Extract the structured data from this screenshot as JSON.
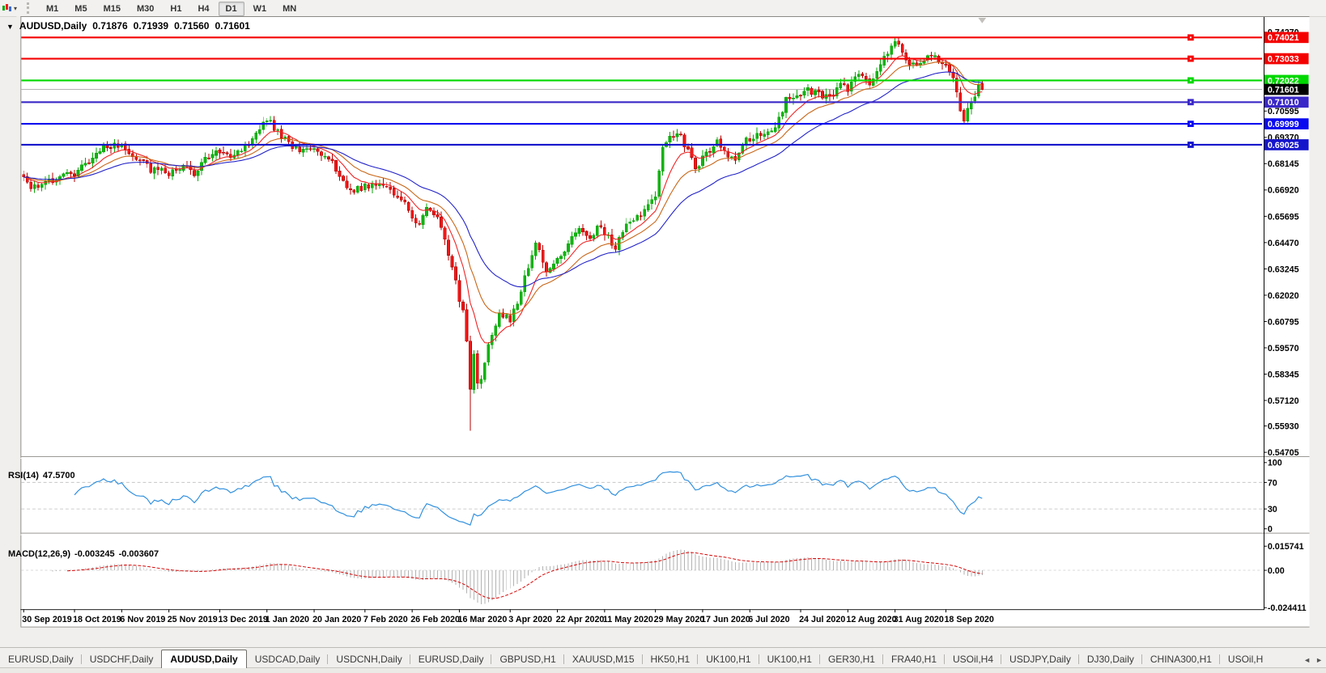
{
  "toolbar": {
    "timeframes": [
      {
        "label": "M1",
        "active": false
      },
      {
        "label": "M5",
        "active": false
      },
      {
        "label": "M15",
        "active": false
      },
      {
        "label": "M30",
        "active": false
      },
      {
        "label": "H1",
        "active": false
      },
      {
        "label": "H4",
        "active": false
      },
      {
        "label": "D1",
        "active": true
      },
      {
        "label": "W1",
        "active": false
      },
      {
        "label": "MN",
        "active": false
      }
    ]
  },
  "chart_header": {
    "dropdown_glyph": "▼",
    "symbol_label": "AUDUSD,Daily",
    "open": "0.71876",
    "high": "0.71939",
    "low": "0.71560",
    "close": "0.71601"
  },
  "price_axis": {
    "current_price": "0.71601",
    "ticks": [
      "0.74270",
      "0.73045",
      "0.71820",
      "0.70595",
      "0.69370",
      "0.68145",
      "0.66920",
      "0.65695",
      "0.64470",
      "0.63245",
      "0.62020",
      "0.60795",
      "0.59570",
      "0.58345",
      "0.57120",
      "0.55930",
      "0.54705"
    ],
    "tick_values": [
      0.7427,
      0.73045,
      0.7182,
      0.70595,
      0.6937,
      0.68145,
      0.6692,
      0.65695,
      0.6447,
      0.63245,
      0.6202,
      0.60795,
      0.5957,
      0.58345,
      0.5712,
      0.5593,
      0.54705
    ]
  },
  "rsi_panel": {
    "name": "RSI(14)",
    "value": "47.5700",
    "ticks": [
      {
        "v": 100,
        "label": "100",
        "dashed": false
      },
      {
        "v": 70,
        "label": "70",
        "dashed": true
      },
      {
        "v": 30,
        "label": "30",
        "dashed": true
      },
      {
        "v": 0,
        "label": "0",
        "dashed": false
      }
    ],
    "line_color": "#2f8fde"
  },
  "macd_panel": {
    "name": "MACD(12,26,9)",
    "main_value": "-0.003245",
    "signal_value": "-0.003607",
    "ticks": [
      {
        "v": 0.015741,
        "label": "0.015741"
      },
      {
        "v": 0,
        "label": "0.00"
      },
      {
        "v": -0.024411,
        "label": "-0.024411"
      }
    ],
    "histogram_color": "#b2b2b2",
    "signal_color": "#d40000"
  },
  "date_axis": {
    "labels": [
      "30 Sep 2019",
      "18 Oct 2019",
      "6 Nov 2019",
      "25 Nov 2019",
      "13 Dec 2019",
      "1 Jan 2020",
      "20 Jan 2020",
      "7 Feb 2020",
      "26 Feb 2020",
      "16 Mar 2020",
      "3 Apr 2020",
      "22 Apr 2020",
      "11 May 2020",
      "29 May 2020",
      "17 Jun 2020",
      "6 Jul 2020",
      "24 Jul 2020",
      "12 Aug 2020",
      "31 Aug 2020",
      "18 Sep 2020"
    ],
    "bars": [
      0,
      14,
      27,
      40,
      54,
      67,
      80,
      94,
      107,
      120,
      134,
      147,
      160,
      174,
      187,
      200,
      214,
      227,
      240,
      254
    ]
  },
  "tabs": {
    "items": [
      {
        "label": "EURUSD,Daily",
        "active": false
      },
      {
        "label": "USDCHF,Daily",
        "active": false
      },
      {
        "label": "AUDUSD,Daily",
        "active": true
      },
      {
        "label": "USDCAD,Daily",
        "active": false
      },
      {
        "label": "USDCNH,Daily",
        "active": false
      },
      {
        "label": "EURUSD,Daily",
        "active": false
      },
      {
        "label": "GBPUSD,H1",
        "active": false
      },
      {
        "label": "XAUUSD,M15",
        "active": false
      },
      {
        "label": "HK50,H1",
        "active": false
      },
      {
        "label": "UK100,H1",
        "active": false
      },
      {
        "label": "UK100,H1",
        "active": false
      },
      {
        "label": "GER30,H1",
        "active": false
      },
      {
        "label": "FRA40,H1",
        "active": false
      },
      {
        "label": "USOil,H4",
        "active": false
      },
      {
        "label": "USDJPY,Daily",
        "active": false
      },
      {
        "label": "DJ30,Daily",
        "active": false
      },
      {
        "label": "CHINA300,H1",
        "active": false
      },
      {
        "label": "USOil,H",
        "active": false
      }
    ],
    "scroll_left_glyph": "◄",
    "scroll_right_glyph": "►"
  },
  "chart_data": {
    "type": "candlestick",
    "title": "AUDUSD,Daily",
    "symbol": "AUDUSD",
    "timeframe": "Daily",
    "current_ohlc": {
      "open": 0.71876,
      "high": 0.71939,
      "low": 0.7156,
      "close": 0.71601
    },
    "ylim": [
      0.5456,
      0.7498
    ],
    "bars_total": 265,
    "price_anchors": [
      [
        0,
        0.6752
      ],
      [
        2,
        0.6698
      ],
      [
        5,
        0.6722
      ],
      [
        9,
        0.6748
      ],
      [
        14,
        0.6772
      ],
      [
        18,
        0.683
      ],
      [
        23,
        0.6902
      ],
      [
        27,
        0.6888
      ],
      [
        31,
        0.6842
      ],
      [
        35,
        0.679
      ],
      [
        40,
        0.6772
      ],
      [
        44,
        0.6802
      ],
      [
        47,
        0.6772
      ],
      [
        50,
        0.6838
      ],
      [
        54,
        0.6872
      ],
      [
        58,
        0.6852
      ],
      [
        62,
        0.6902
      ],
      [
        66,
        0.7018
      ],
      [
        68,
        0.7002
      ],
      [
        71,
        0.6938
      ],
      [
        75,
        0.6882
      ],
      [
        80,
        0.6872
      ],
      [
        84,
        0.6846
      ],
      [
        88,
        0.6722
      ],
      [
        91,
        0.6696
      ],
      [
        95,
        0.6712
      ],
      [
        99,
        0.6716
      ],
      [
        103,
        0.6666
      ],
      [
        106,
        0.6602
      ],
      [
        109,
        0.6518
      ],
      [
        111,
        0.6618
      ],
      [
        113,
        0.659
      ],
      [
        115,
        0.6512
      ],
      [
        117,
        0.6395
      ],
      [
        119,
        0.6288
      ],
      [
        120,
        0.6172
      ],
      [
        121,
        0.6128
      ],
      [
        122,
        0.5988
      ],
      [
        123,
        0.5772
      ],
      [
        124,
        0.5928
      ],
      [
        125,
        0.5795
      ],
      [
        126,
        0.5822
      ],
      [
        128,
        0.5962
      ],
      [
        131,
        0.6128
      ],
      [
        134,
        0.6092
      ],
      [
        136,
        0.6168
      ],
      [
        139,
        0.6338
      ],
      [
        141,
        0.6442
      ],
      [
        144,
        0.6312
      ],
      [
        147,
        0.6362
      ],
      [
        150,
        0.6438
      ],
      [
        153,
        0.6508
      ],
      [
        156,
        0.6458
      ],
      [
        158,
        0.6528
      ],
      [
        161,
        0.6478
      ],
      [
        163,
        0.6418
      ],
      [
        166,
        0.6532
      ],
      [
        169,
        0.6558
      ],
      [
        172,
        0.6628
      ],
      [
        174,
        0.6662
      ],
      [
        176,
        0.6885
      ],
      [
        178,
        0.6938
      ],
      [
        180,
        0.6962
      ],
      [
        183,
        0.6878
      ],
      [
        185,
        0.6798
      ],
      [
        188,
        0.6858
      ],
      [
        191,
        0.6922
      ],
      [
        193,
        0.6862
      ],
      [
        196,
        0.6842
      ],
      [
        198,
        0.6912
      ],
      [
        201,
        0.6938
      ],
      [
        204,
        0.6962
      ],
      [
        207,
        0.6988
      ],
      [
        210,
        0.7108
      ],
      [
        213,
        0.7132
      ],
      [
        216,
        0.7158
      ],
      [
        219,
        0.7142
      ],
      [
        222,
        0.7122
      ],
      [
        225,
        0.7182
      ],
      [
        227,
        0.7162
      ],
      [
        230,
        0.7232
      ],
      [
        233,
        0.7188
      ],
      [
        236,
        0.7282
      ],
      [
        239,
        0.7362
      ],
      [
        240,
        0.7378
      ],
      [
        242,
        0.7338
      ],
      [
        244,
        0.7282
      ],
      [
        246,
        0.7258
      ],
      [
        248,
        0.7298
      ],
      [
        250,
        0.7318
      ],
      [
        252,
        0.7298
      ],
      [
        254,
        0.7288
      ],
      [
        256,
        0.7212
      ],
      [
        258,
        0.7058
      ],
      [
        259,
        0.7028
      ],
      [
        261,
        0.7088
      ],
      [
        263,
        0.7182
      ],
      [
        264,
        0.716
      ]
    ],
    "wick_overrides": {
      "low": {
        "123": 0.557
      },
      "high": {
        "240": 0.74021
      }
    },
    "noise": {
      "seed": 11,
      "close_amp": 0.0016,
      "wick_amp": 0.0024
    },
    "up_color": "#0aa60a",
    "up_fill": "#12b412",
    "down_color": "#b40000",
    "down_fill": "#f51616",
    "moving_averages": [
      {
        "period": 9,
        "color": "#f02020"
      },
      {
        "period": 18,
        "color": "#c86414"
      },
      {
        "period": 34,
        "color": "#2020c8"
      }
    ],
    "horizontal_lines": [
      {
        "price": 0.74021,
        "label": "0.74021",
        "color": "#f40000"
      },
      {
        "price": 0.73033,
        "label": "0.73033",
        "color": "#f40000"
      },
      {
        "price": 0.72022,
        "label": "0.72022",
        "color": "#00d800"
      },
      {
        "price": 0.7101,
        "label": "0.71010",
        "color": "#3a28c8"
      },
      {
        "price": 0.69999,
        "label": "0.69999",
        "color": "#0a0af0"
      },
      {
        "price": 0.69025,
        "label": "0.69025",
        "color": "#1515cc"
      }
    ],
    "current_price_line": {
      "price": 0.71601,
      "label": "0.71601",
      "line_color": "#a8a8a8",
      "chip_color": "#000000"
    },
    "subcharts": [
      {
        "type": "line",
        "name": "RSI(14)",
        "current": 47.57,
        "range": [
          0,
          100
        ],
        "levels": [
          70,
          30
        ],
        "ticks": [
          100,
          70,
          30,
          0
        ],
        "color": "#2f8fde"
      },
      {
        "type": "macd",
        "name": "MACD(12,26,9)",
        "params": [
          12,
          26,
          9
        ],
        "main": -0.003245,
        "signal": -0.003607,
        "ticks": [
          0.015741,
          0.0,
          -0.024411
        ],
        "histogram_color": "#b2b2b2",
        "signal_color": "#d40000"
      }
    ]
  }
}
